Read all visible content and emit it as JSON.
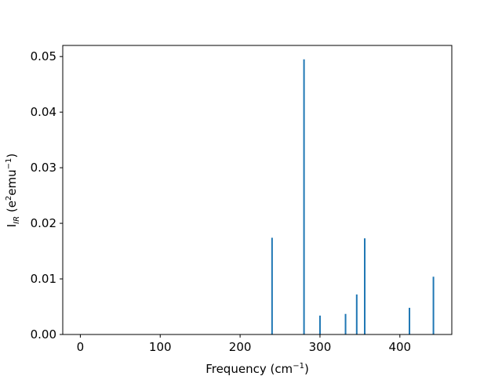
{
  "chart_data": {
    "type": "bar",
    "style": "stick-spectrum",
    "x": [
      240,
      280,
      300,
      332,
      346,
      356,
      412,
      442
    ],
    "values": [
      0.0174,
      0.0495,
      0.0034,
      0.0037,
      0.0072,
      0.0173,
      0.0048,
      0.0104
    ],
    "xlim": [
      -22,
      465
    ],
    "ylim": [
      0,
      0.052
    ],
    "xticks": [
      0,
      100,
      200,
      300,
      400
    ],
    "yticks": [
      0.0,
      0.01,
      0.02,
      0.03,
      0.04,
      0.05
    ],
    "xtick_labels": [
      "0",
      "100",
      "200",
      "300",
      "400"
    ],
    "ytick_labels": [
      "0.00",
      "0.01",
      "0.02",
      "0.03",
      "0.04",
      "0.05"
    ],
    "xlabel": {
      "main": "Frequency (cm",
      "sup": "−1",
      "end": ")"
    },
    "ylabel": {
      "main": "I",
      "sub": "IR",
      "mid": " (e",
      "sup1": "2",
      "mid2": "emu",
      "sup2": "−1",
      "end": ")"
    },
    "grid": false,
    "color": "#1f77b4"
  }
}
